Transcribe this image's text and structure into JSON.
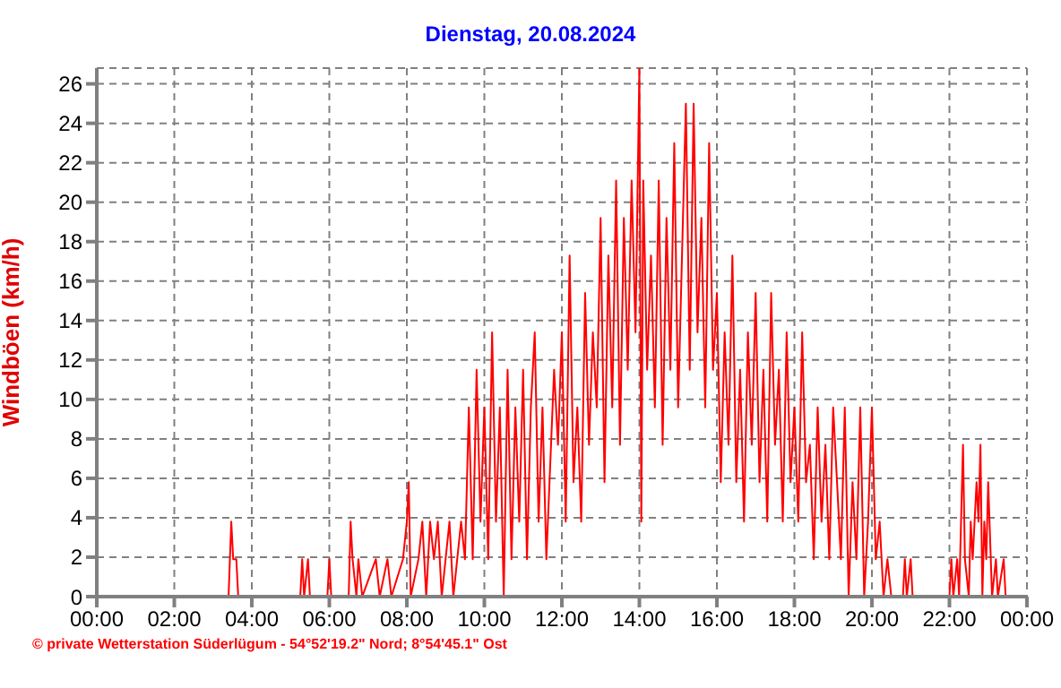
{
  "chart_data": {
    "type": "line",
    "title": "Dienstag, 20.08.2024",
    "ylabel": "Windböen (km/h)",
    "annotations": [
      "© private Wetterstation Süderlügum - 54°52'19.2\" Nord; 8°54'45.1\" Ost"
    ],
    "xlim": [
      0,
      24
    ],
    "xticks": [
      {
        "value": 0,
        "label": "00:00"
      },
      {
        "value": 2,
        "label": "02:00"
      },
      {
        "value": 4,
        "label": "04:00"
      },
      {
        "value": 6,
        "label": "06:00"
      },
      {
        "value": 8,
        "label": "08:00"
      },
      {
        "value": 10,
        "label": "10:00"
      },
      {
        "value": 12,
        "label": "12:00"
      },
      {
        "value": 14,
        "label": "14:00"
      },
      {
        "value": 16,
        "label": "16:00"
      },
      {
        "value": 18,
        "label": "18:00"
      },
      {
        "value": 20,
        "label": "20:00"
      },
      {
        "value": 22,
        "label": "22:00"
      },
      {
        "value": 24,
        "label": "00:00"
      }
    ],
    "ylim": [
      0,
      26.8
    ],
    "yticks": [
      0,
      2,
      4,
      6,
      8,
      10,
      12,
      14,
      16,
      18,
      20,
      22,
      24,
      26
    ],
    "grid": true,
    "marker": "none",
    "line_style": "solid",
    "x": [
      0,
      3.4,
      3.47,
      3.52,
      3.6,
      3.65,
      5.25,
      5.3,
      5.35,
      5.45,
      5.5,
      5.95,
      6.0,
      6.05,
      6.5,
      6.55,
      6.6,
      6.7,
      6.75,
      6.85,
      7.2,
      7.3,
      7.5,
      7.6,
      7.9,
      8.0,
      8.05,
      8.1,
      8.3,
      8.4,
      8.5,
      8.6,
      8.7,
      8.8,
      8.9,
      9.0,
      9.1,
      9.2,
      9.3,
      9.4,
      9.5,
      9.6,
      9.7,
      9.8,
      9.9,
      10.0,
      10.1,
      10.2,
      10.3,
      10.4,
      10.5,
      10.6,
      10.7,
      10.8,
      10.9,
      11.0,
      11.1,
      11.2,
      11.3,
      11.4,
      11.5,
      11.6,
      11.8,
      11.9,
      12.0,
      12.1,
      12.2,
      12.3,
      12.4,
      12.5,
      12.6,
      12.7,
      12.8,
      12.9,
      13.0,
      13.1,
      13.2,
      13.3,
      13.4,
      13.5,
      13.6,
      13.7,
      13.8,
      13.9,
      14.0,
      14.05,
      14.1,
      14.2,
      14.3,
      14.4,
      14.5,
      14.6,
      14.7,
      14.8,
      14.9,
      15.0,
      15.1,
      15.2,
      15.3,
      15.4,
      15.5,
      15.6,
      15.7,
      15.8,
      15.9,
      16.0,
      16.1,
      16.2,
      16.3,
      16.4,
      16.5,
      16.6,
      16.7,
      16.8,
      16.9,
      17.0,
      17.1,
      17.2,
      17.3,
      17.4,
      17.5,
      17.6,
      17.7,
      17.8,
      17.9,
      18.0,
      18.1,
      18.2,
      18.3,
      18.4,
      18.5,
      18.6,
      18.7,
      18.8,
      18.9,
      19.0,
      19.1,
      19.2,
      19.3,
      19.4,
      19.5,
      19.6,
      19.7,
      19.8,
      19.9,
      20.0,
      20.1,
      20.2,
      20.3,
      20.4,
      20.5,
      20.8,
      20.85,
      20.9,
      21.0,
      21.05,
      22.0,
      22.05,
      22.1,
      22.2,
      22.25,
      22.3,
      22.35,
      22.4,
      22.5,
      22.55,
      22.6,
      22.7,
      22.75,
      22.8,
      22.85,
      22.9,
      22.95,
      23.0,
      23.1,
      23.2,
      23.25,
      23.4,
      23.45,
      24.0
    ],
    "series": [
      {
        "color": "#ff0000",
        "values": [
          0,
          0,
          3.8,
          1.9,
          1.9,
          0,
          0,
          1.9,
          0,
          1.9,
          0,
          0,
          1.9,
          0,
          0,
          3.8,
          1.9,
          0,
          1.9,
          0,
          1.9,
          0,
          1.9,
          0,
          1.9,
          3.8,
          5.8,
          0,
          1.9,
          3.8,
          0,
          3.8,
          1.9,
          3.8,
          0,
          1.9,
          3.8,
          0,
          1.9,
          3.8,
          1.9,
          9.6,
          1.9,
          11.5,
          3.8,
          9.6,
          1.9,
          13.4,
          3.8,
          9.6,
          0,
          11.5,
          1.9,
          9.6,
          3.8,
          11.5,
          1.9,
          9.6,
          13.4,
          3.8,
          9.6,
          1.9,
          11.5,
          7.7,
          13.4,
          3.8,
          17.3,
          5.8,
          9.6,
          3.8,
          15.4,
          7.7,
          13.4,
          9.6,
          19.2,
          5.8,
          17.3,
          9.6,
          21.1,
          7.7,
          19.2,
          11.5,
          21.1,
          13.4,
          26.8,
          3.8,
          21.1,
          11.5,
          17.3,
          9.6,
          21.1,
          7.7,
          19.2,
          11.5,
          23.0,
          9.6,
          17.3,
          25.0,
          11.5,
          25.0,
          13.4,
          19.2,
          9.6,
          23.0,
          11.5,
          15.4,
          5.8,
          13.4,
          7.7,
          17.3,
          5.8,
          11.5,
          3.8,
          13.4,
          7.7,
          15.4,
          5.8,
          11.5,
          3.8,
          15.4,
          7.7,
          11.5,
          3.8,
          13.4,
          5.8,
          9.6,
          3.8,
          13.4,
          5.8,
          7.7,
          1.9,
          9.6,
          3.8,
          7.7,
          1.9,
          9.6,
          5.8,
          1.9,
          9.6,
          0,
          5.8,
          1.9,
          9.6,
          0,
          3.8,
          9.6,
          1.9,
          3.8,
          0,
          1.9,
          0,
          0,
          1.9,
          0,
          1.9,
          0,
          0,
          1.9,
          0,
          1.9,
          0,
          3.8,
          7.7,
          1.9,
          0,
          3.8,
          1.9,
          5.8,
          3.8,
          7.7,
          0,
          3.8,
          1.9,
          5.8,
          0,
          1.9,
          0,
          1.9,
          0,
          0
        ]
      }
    ]
  }
}
